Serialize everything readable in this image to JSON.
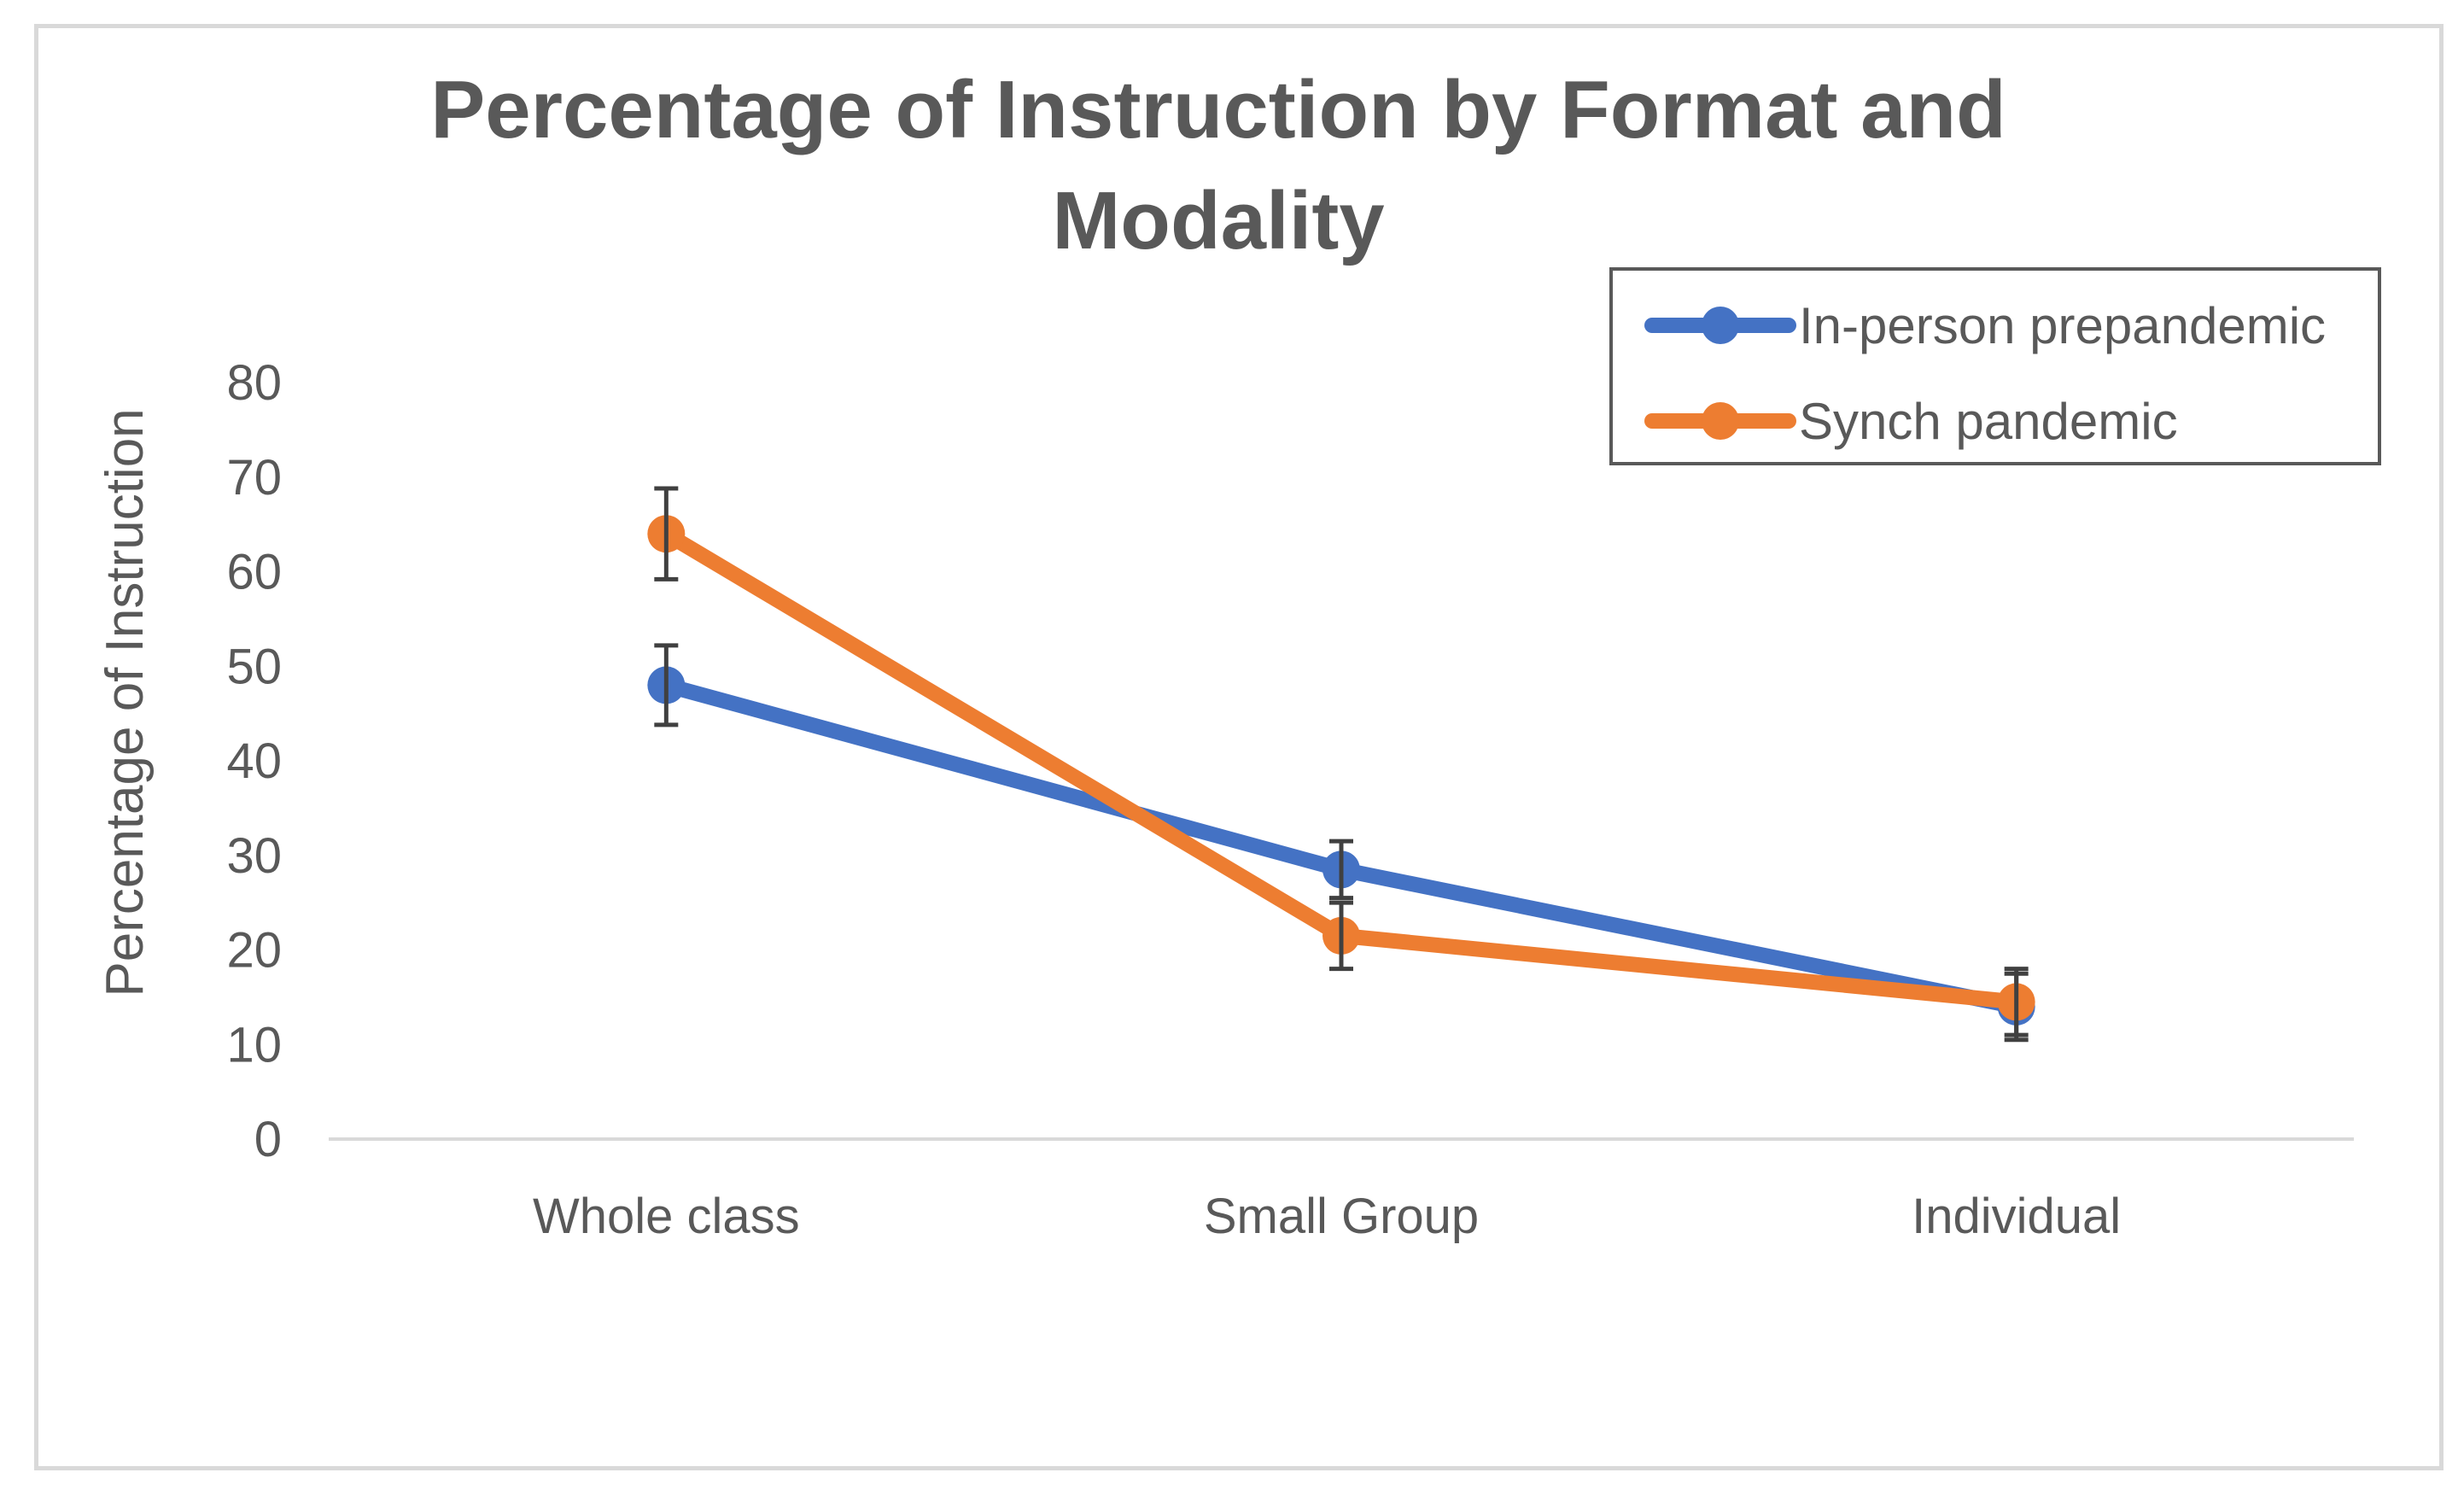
{
  "chart_data": {
    "type": "line",
    "title": "Percentage of Instruction by  Format and Modality",
    "title_lines": [
      "Percentage of Instruction by  Format and",
      "Modality"
    ],
    "xlabel": "",
    "ylabel": "Percentage of Instruction",
    "categories": [
      "Whole class",
      "Small Group",
      "Individual"
    ],
    "ylim": [
      0,
      80
    ],
    "yticks": [
      0,
      10,
      20,
      30,
      40,
      50,
      60,
      70,
      80
    ],
    "grid": false,
    "legend_position": "top-right",
    "series": [
      {
        "name": "In-person prepandemic",
        "color": "#4472C4",
        "values": [
          48,
          28.5,
          14
        ],
        "error": [
          4.2,
          3,
          3.5
        ]
      },
      {
        "name": "Synch pandemic",
        "color": "#ED7D31",
        "values": [
          64,
          21.5,
          14.5
        ],
        "error": [
          4.8,
          3.5,
          3.5
        ]
      }
    ]
  }
}
